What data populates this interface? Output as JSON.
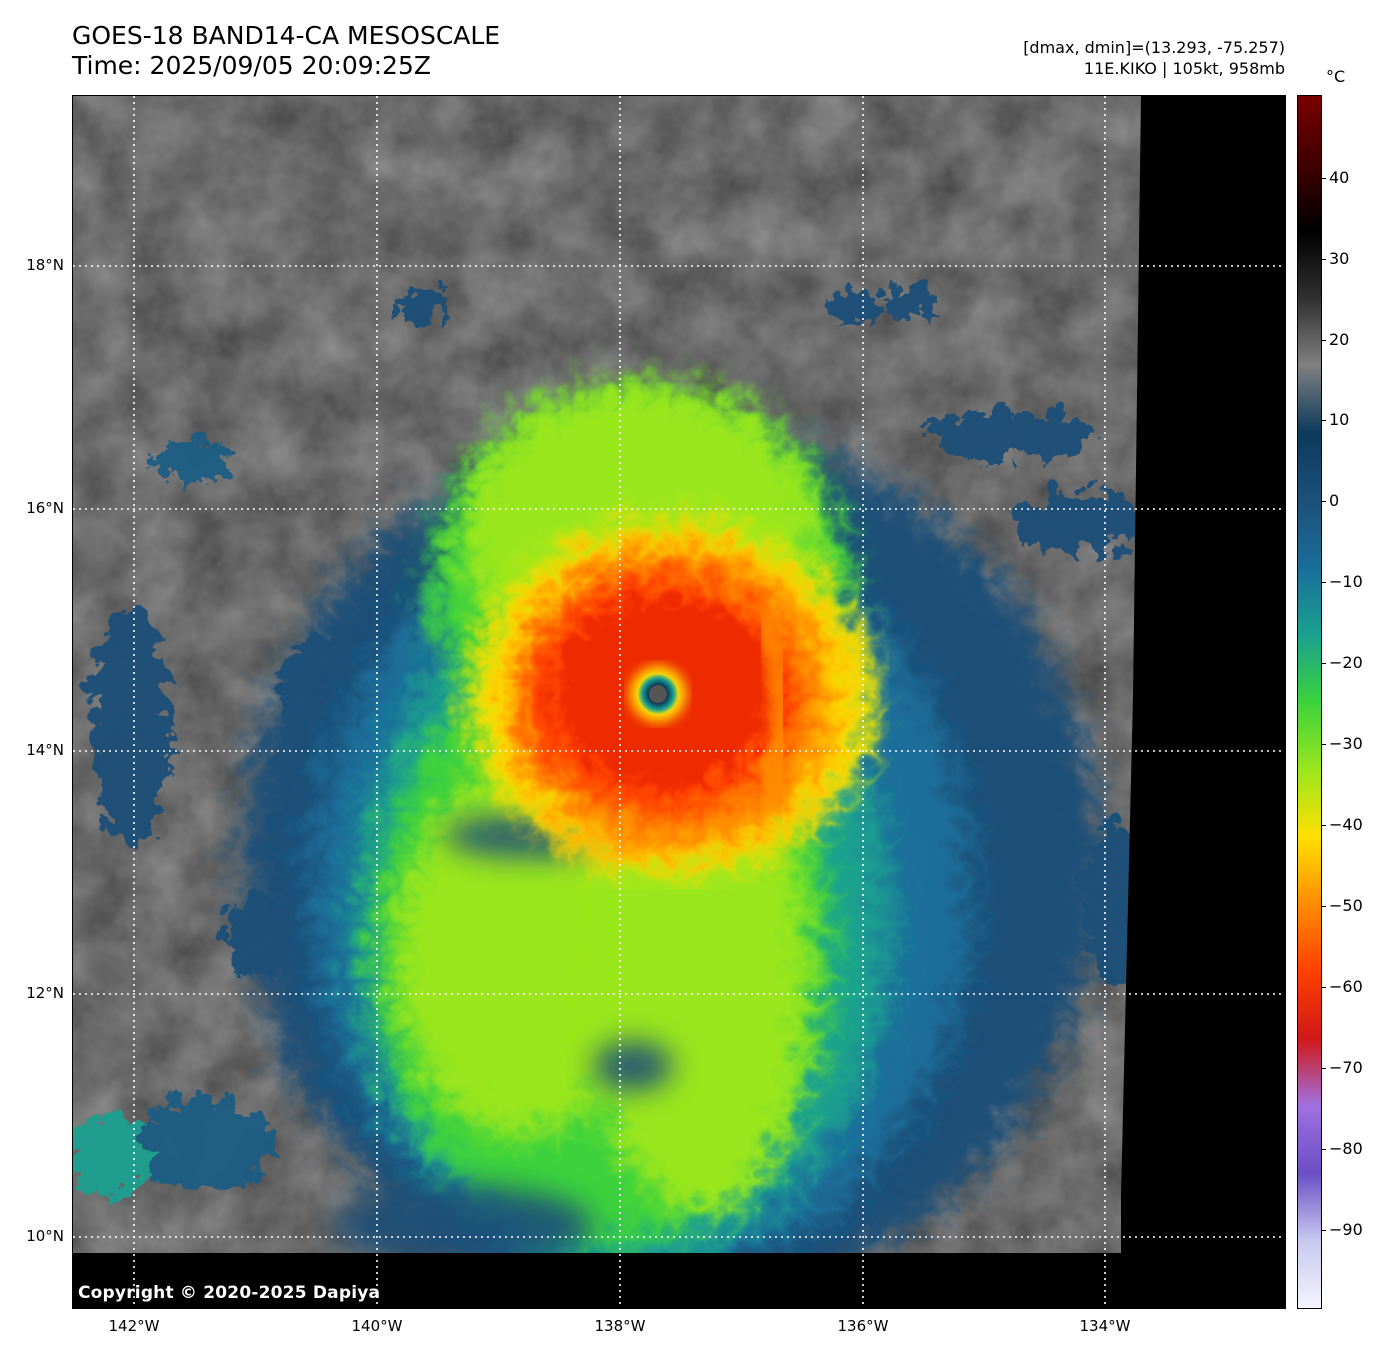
{
  "header": {
    "title_line1": "GOES-18 BAND14-CA MESOSCALE",
    "title_line2": "Time: 2025/09/05 20:09:25Z",
    "info_line1": "[dmax, dmin]=(13.293, -75.257)",
    "info_line2": "11E.KIKO | 105kt, 958mb"
  },
  "map": {
    "lat_labels": [
      "18°N",
      "16°N",
      "14°N",
      "12°N",
      "10°N"
    ],
    "lon_labels": [
      "142°W",
      "140°W",
      "138°W",
      "136°W",
      "134°W"
    ],
    "copyright": "Copyright © 2020-2025 Dapiya",
    "storm_name": "KIKO",
    "storm_center": {
      "lat": 14.47,
      "lon": -137.7
    }
  },
  "colorbar": {
    "unit": "°C",
    "labels": [
      "40",
      "30",
      "20",
      "10",
      "0",
      "−10",
      "−20",
      "−30",
      "−40",
      "−50",
      "−60",
      "−70",
      "−80",
      "−90"
    ],
    "colors": [
      "#f4f4ff",
      "#c8c8f0",
      "#6a4fc4",
      "#a070e0",
      "#d01818",
      "#ff4000",
      "#ff8c00",
      "#ffe000",
      "#9ae61e",
      "#3cd23c",
      "#1aa090",
      "#1a6e9a",
      "#1d4f78",
      "#0c3a5c",
      "#808080",
      "#303030",
      "#000000",
      "#400000",
      "#7a0000"
    ]
  }
}
